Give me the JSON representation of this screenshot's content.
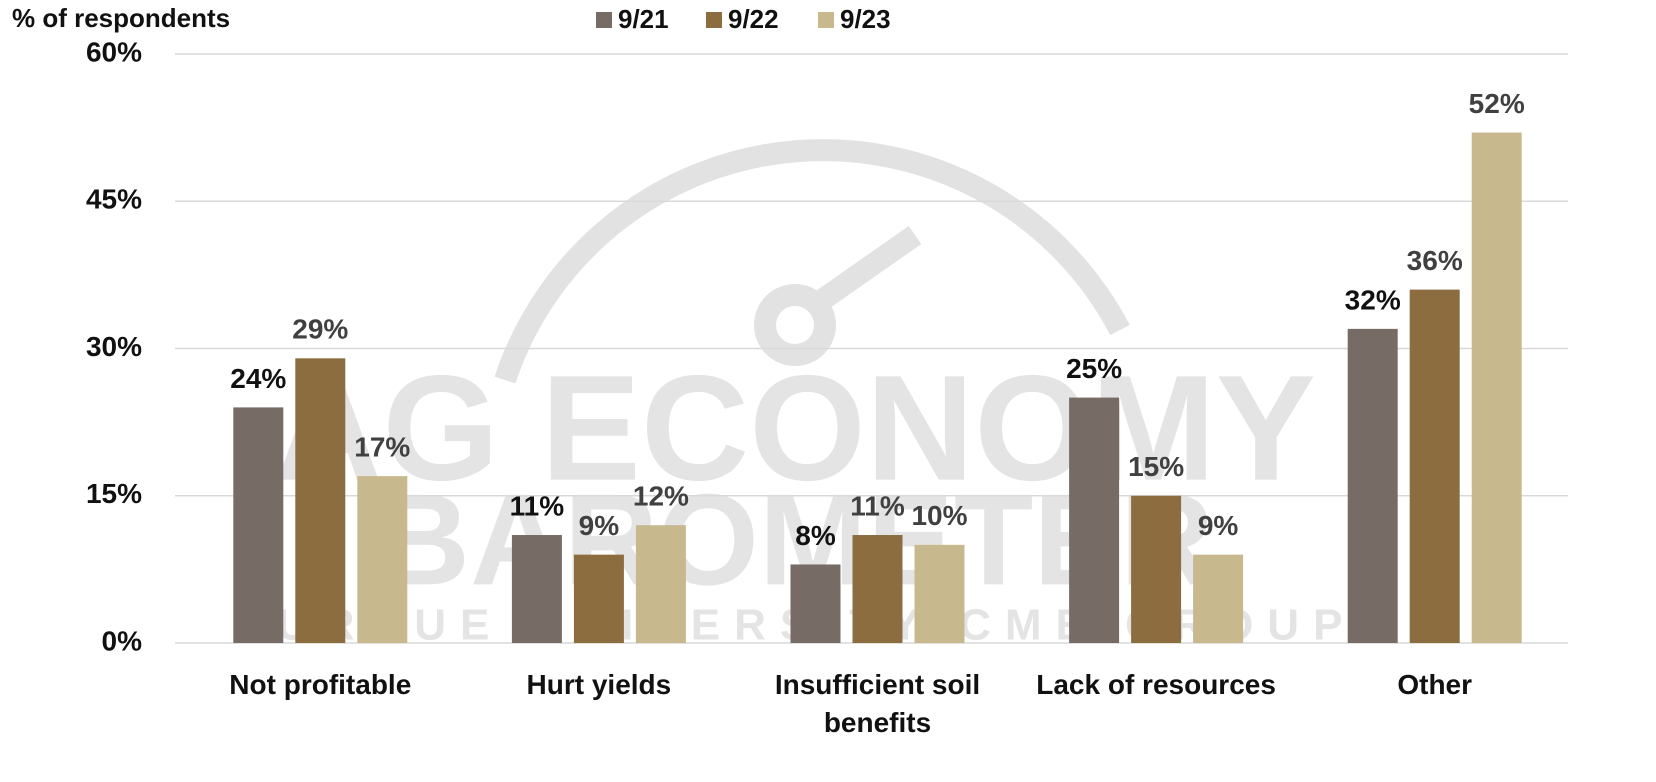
{
  "chart_data": {
    "type": "bar",
    "y_axis_label": "% of respondents",
    "categories": [
      "Not profitable",
      "Hurt yields",
      "Insufficient soil benefits",
      "Lack of resources",
      "Other"
    ],
    "series": [
      {
        "name": "9/21",
        "color": "#766c65",
        "values": [
          24,
          11,
          8,
          25,
          32
        ],
        "value_labels": [
          "24%",
          "11%",
          "8%",
          "25%",
          "32%"
        ],
        "label_color": "#111111"
      },
      {
        "name": "9/22",
        "color": "#8b6d3f",
        "values": [
          29,
          9,
          11,
          15,
          36
        ],
        "value_labels": [
          "29%",
          "9%",
          "11%",
          "15%",
          "36%"
        ],
        "label_color": "#404040"
      },
      {
        "name": "9/23",
        "color": "#c8b88e",
        "values": [
          17,
          12,
          10,
          9,
          52
        ],
        "value_labels": [
          "17%",
          "12%",
          "10%",
          "9%",
          "52%"
        ],
        "label_color": "#404040"
      }
    ],
    "ylim": [
      0,
      60
    ],
    "yticks": [
      {
        "value": 0,
        "label": "0%"
      },
      {
        "value": 15,
        "label": "15%"
      },
      {
        "value": 30,
        "label": "30%"
      },
      {
        "value": 45,
        "label": "45%"
      },
      {
        "value": 60,
        "label": "60%"
      }
    ],
    "grid": true,
    "legend": "top",
    "watermark": [
      "AG ECONOMY",
      "BAROMETER",
      "PURDUE UNIVERSITY CME GROUP"
    ]
  }
}
